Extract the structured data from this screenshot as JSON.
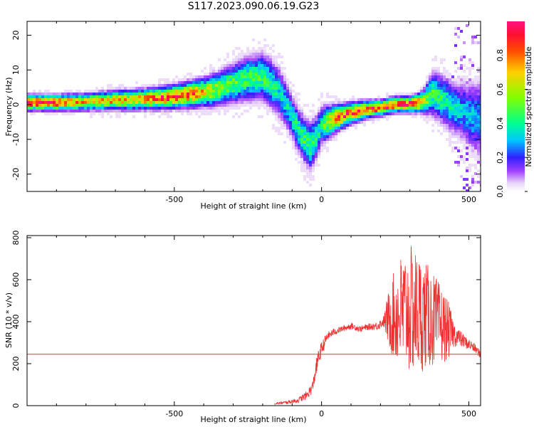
{
  "figure_title": "S117.2023.090.06.19.G23",
  "chart_data": [
    {
      "type": "heatmap",
      "id": "spectrogram",
      "xlabel": "Height of straight line (km)",
      "ylabel": "Frequency (Hz)",
      "xlim": [
        -1000,
        540
      ],
      "ylim": [
        -25,
        24
      ],
      "xticks": [
        -500,
        0,
        500
      ],
      "yticks": [
        -20,
        -10,
        0,
        10,
        20
      ],
      "colorbar": {
        "label": "Normalized spectral amplitude",
        "range": [
          0.0,
          1.0
        ],
        "ticks": [
          "0.0",
          "0.2",
          "0.4",
          "0.6",
          "0.8"
        ],
        "colormap": [
          "#ffffff",
          "#e0c8f8",
          "#9b30ff",
          "#3020ff",
          "#00d8ff",
          "#00ff80",
          "#c8ff00",
          "#ffa000",
          "#ff2020",
          "#ff1080"
        ]
      },
      "ridge": {
        "x": [
          -1000,
          -900,
          -800,
          -700,
          -600,
          -500,
          -450,
          -400,
          -350,
          -300,
          -250,
          -200,
          -170,
          -140,
          -120,
          -100,
          -80,
          -60,
          -40,
          -20,
          0,
          50,
          100,
          150,
          200,
          250,
          300,
          330,
          350,
          370,
          380,
          400,
          420,
          450,
          480,
          500,
          520,
          540
        ],
        "y": [
          0.5,
          0.5,
          0.7,
          1.2,
          1.5,
          2.2,
          2.8,
          3.5,
          4.5,
          6.0,
          7.5,
          8.0,
          6.0,
          3.0,
          0.0,
          -3.5,
          -7.0,
          -10.0,
          -12.0,
          -10.0,
          -6.0,
          -4.0,
          -2.5,
          -1.5,
          -1.0,
          0.0,
          0.0,
          0.5,
          1.0,
          2.5,
          3.0,
          2.0,
          1.0,
          -1.0,
          -2.0,
          -3.0,
          -4.0,
          -4.0
        ],
        "spread": [
          1.2,
          1.2,
          1.3,
          1.5,
          1.6,
          1.8,
          2.0,
          2.2,
          2.6,
          3.0,
          3.5,
          3.6,
          3.8,
          3.8,
          3.6,
          3.4,
          3.4,
          3.5,
          3.6,
          3.5,
          3.0,
          2.0,
          1.6,
          1.4,
          1.2,
          1.2,
          1.2,
          1.4,
          2.0,
          3.0,
          3.5,
          3.5,
          3.8,
          4.0,
          4.5,
          5.0,
          5.5,
          6.0
        ],
        "peak": [
          0.9,
          0.9,
          0.7,
          0.7,
          0.75,
          0.85,
          0.85,
          0.7,
          0.55,
          0.5,
          0.45,
          0.45,
          0.4,
          0.35,
          0.35,
          0.35,
          0.4,
          0.45,
          0.45,
          0.4,
          0.4,
          0.85,
          0.85,
          0.85,
          0.85,
          0.9,
          0.9,
          0.9,
          0.55,
          0.5,
          0.45,
          0.45,
          0.4,
          0.35,
          0.3,
          0.3,
          0.3,
          0.3
        ]
      }
    },
    {
      "type": "line",
      "id": "snr",
      "xlabel": "Height of straight line (km)",
      "ylabel": "SNR (10 * v/v)",
      "xlim": [
        -1000,
        540
      ],
      "ylim": [
        0,
        810
      ],
      "xticks": [
        -500,
        0,
        500
      ],
      "yticks": [
        0,
        200,
        400,
        600,
        800
      ],
      "threshold": 245,
      "series": [
        {
          "x": [
            -160,
            -120,
            -80,
            -50,
            -30,
            -20,
            -10,
            0,
            10,
            20,
            40,
            60,
            80,
            100,
            130,
            160,
            190,
            210,
            230,
            250,
            270,
            290,
            310,
            330,
            350,
            370,
            390,
            410,
            430,
            450,
            470,
            490,
            510,
            530,
            540
          ],
          "y": [
            10,
            15,
            25,
            50,
            90,
            170,
            230,
            270,
            300,
            330,
            350,
            360,
            370,
            380,
            365,
            375,
            380,
            400,
            415,
            430,
            445,
            450,
            455,
            440,
            430,
            420,
            400,
            380,
            360,
            340,
            320,
            300,
            285,
            260,
            240
          ],
          "noise": [
            5,
            8,
            12,
            20,
            30,
            40,
            40,
            35,
            30,
            20,
            18,
            15,
            15,
            15,
            15,
            15,
            20,
            25,
            150,
            230,
            280,
            300,
            310,
            290,
            260,
            240,
            210,
            180,
            140,
            60,
            40,
            30,
            25,
            20,
            20
          ]
        }
      ]
    }
  ]
}
